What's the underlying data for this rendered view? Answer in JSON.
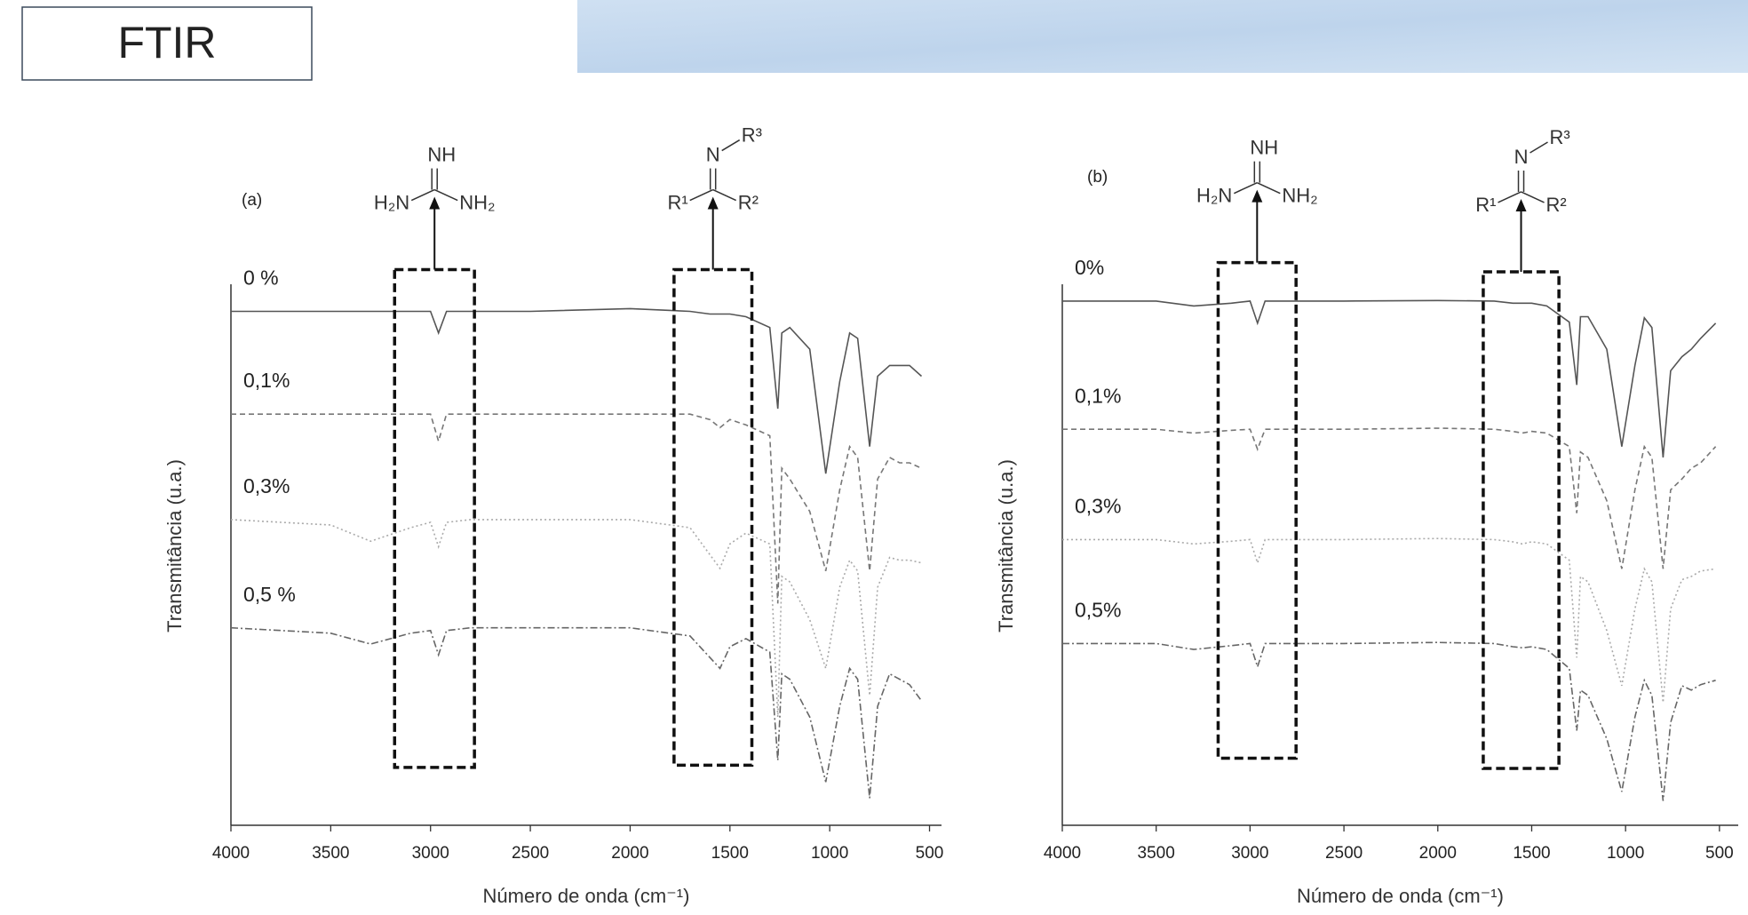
{
  "header": {
    "title": "FTIR"
  },
  "chart_data": [
    {
      "type": "line",
      "panel_label": "(a)",
      "x_label": "Número de onda (cm⁻¹)",
      "y_label": "Transmitância (u.a.)",
      "xlim": [
        4000,
        440
      ],
      "ylim": [
        0,
        100
      ],
      "xticks": [
        4000,
        3500,
        3000,
        2500,
        2000,
        1500,
        1000,
        500
      ],
      "x": [
        4000,
        3500,
        3300,
        3100,
        3000,
        2960,
        2920,
        2800,
        2500,
        2000,
        1700,
        1600,
        1550,
        1500,
        1420,
        1300,
        1260,
        1240,
        1200,
        1100,
        1020,
        950,
        900,
        860,
        800,
        760,
        700,
        650,
        600,
        540
      ],
      "series": [
        {
          "name": "0 %",
          "color": "#555555",
          "dash": "solid",
          "values": [
            95,
            95,
            95,
            95,
            95,
            91,
            95,
            95,
            95,
            95.5,
            95,
            94.5,
            94.5,
            94.5,
            94,
            92,
            77,
            91,
            92,
            88,
            65,
            82,
            91,
            90,
            70,
            83,
            85,
            85,
            85,
            83
          ]
        },
        {
          "name": "0,1%",
          "color": "#777777",
          "dash": "dashed",
          "values": [
            76,
            76,
            76,
            76,
            76,
            71,
            76,
            76,
            76,
            76,
            76,
            75,
            73.5,
            75,
            74,
            72,
            41,
            66,
            64,
            58,
            47,
            62,
            70,
            68,
            47,
            64,
            68,
            67,
            67,
            66
          ]
        },
        {
          "name": "0,3%",
          "color": "#aaaaaa",
          "dash": "dotted",
          "values": [
            56.5,
            55.5,
            52.5,
            55,
            56,
            51.5,
            56,
            56.5,
            56.5,
            56.5,
            55,
            50,
            47.5,
            52,
            54,
            52,
            20,
            46,
            45,
            38,
            29,
            44,
            49,
            47,
            24,
            44,
            49.5,
            49,
            49,
            48.5
          ]
        },
        {
          "name": "0,5 %",
          "color": "#666666",
          "dash": "dashdot",
          "values": [
            36.5,
            35.5,
            33.5,
            35.5,
            36,
            31.5,
            36,
            36.5,
            36.5,
            36.5,
            35,
            31,
            29,
            33,
            34.5,
            32,
            12,
            28,
            27,
            20,
            8,
            22,
            29,
            27,
            5,
            22,
            28,
            27,
            26,
            23
          ]
        }
      ],
      "highlight_regions": [
        {
          "x": [
            3180,
            2780
          ],
          "y": [
            102.7,
            10.7
          ]
        },
        {
          "x": [
            1780,
            1390
          ],
          "y": [
            102.7,
            11.1
          ]
        }
      ],
      "structures": [
        {
          "top": "NH",
          "left": "H₂N",
          "right": "NH₂"
        },
        {
          "top": "N",
          "top_right": "R³",
          "left": "R¹",
          "right": "R²"
        }
      ]
    },
    {
      "type": "line",
      "panel_label": "(b)",
      "x_label": "Número de onda (cm⁻¹)",
      "y_label": "Transmitância (u.a.)",
      "xlim": [
        4000,
        400
      ],
      "ylim": [
        0,
        100
      ],
      "xticks": [
        4000,
        3500,
        3000,
        2500,
        2000,
        1500,
        1000,
        500
      ],
      "x": [
        4000,
        3500,
        3300,
        3100,
        3000,
        2960,
        2920,
        2800,
        2500,
        2000,
        1700,
        1600,
        1550,
        1500,
        1420,
        1300,
        1260,
        1240,
        1200,
        1100,
        1020,
        950,
        900,
        860,
        800,
        760,
        700,
        650,
        600,
        520
      ],
      "series": [
        {
          "name": "0%",
          "color": "#555555",
          "dash": "solid",
          "values": [
            96.9,
            96.9,
            96,
            96.5,
            96.9,
            92.8,
            96.9,
            96.9,
            96.9,
            97,
            96.9,
            96.5,
            96.5,
            96.5,
            96,
            93,
            81.4,
            94,
            94,
            88,
            70,
            85,
            93.8,
            92,
            68,
            84,
            86.6,
            88,
            90,
            92.8
          ]
        },
        {
          "name": "0,1%",
          "color": "#777777",
          "dash": "dashed",
          "values": [
            73.2,
            73.2,
            72.5,
            73,
            73.2,
            69.5,
            73.2,
            73.2,
            73.2,
            73.4,
            73.2,
            72.8,
            72.5,
            72.8,
            72.5,
            70,
            57.7,
            69,
            68,
            60,
            47.4,
            62,
            70,
            68,
            47.4,
            62,
            64,
            66,
            67,
            70
          ]
        },
        {
          "name": "0,3%",
          "color": "#aaaaaa",
          "dash": "dotted",
          "values": [
            52.8,
            52.8,
            52,
            52.5,
            52.8,
            48.5,
            52.8,
            52.8,
            52.8,
            53,
            52.8,
            52.4,
            52,
            52.4,
            52,
            49,
            31,
            46,
            45,
            36,
            25.8,
            40,
            47.4,
            45,
            22.7,
            40,
            45.4,
            46,
            47,
            47.4
          ]
        },
        {
          "name": "0,5%",
          "color": "#666666",
          "dash": "dashdot",
          "values": [
            33.6,
            33.6,
            32.5,
            33.2,
            33.6,
            29.3,
            33.6,
            33.6,
            33.6,
            33.8,
            33.6,
            33,
            32.8,
            33,
            32.5,
            29,
            17.5,
            25,
            24,
            16,
            6.2,
            20,
            26.8,
            24,
            4.5,
            19,
            25.8,
            25,
            26,
            26.8
          ]
        }
      ],
      "highlight_regions": [
        {
          "x": [
            3170,
            2755
          ],
          "y": [
            104,
            12.4
          ]
        },
        {
          "x": [
            1758,
            1355
          ],
          "y": [
            102.3,
            10.5
          ]
        }
      ],
      "structures": [
        {
          "top": "NH",
          "left": "H₂N",
          "right": "NH₂"
        },
        {
          "top": "N",
          "top_right": "R³",
          "left": "R¹",
          "right": "R²"
        }
      ]
    }
  ]
}
